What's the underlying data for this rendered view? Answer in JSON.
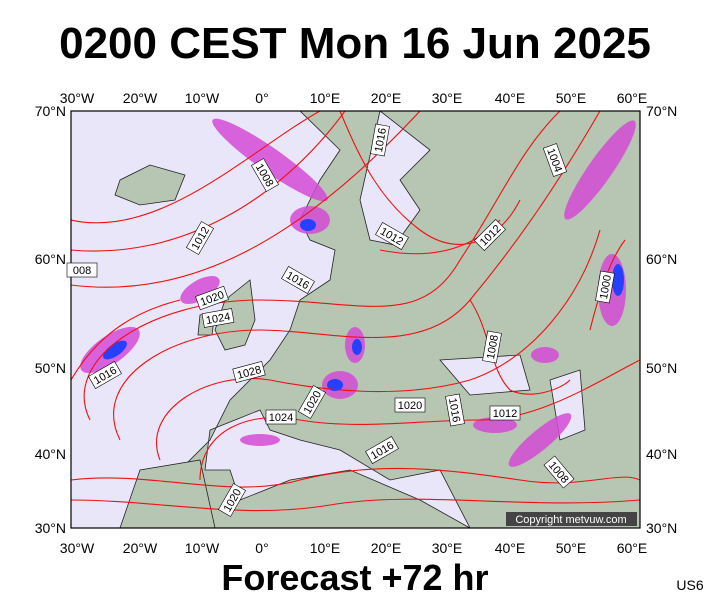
{
  "header": {
    "title": "0200 CEST Mon 16 Jun 2025"
  },
  "map": {
    "lon_labels": [
      "30°W",
      "20°W",
      "10°W",
      "0°",
      "10°E",
      "20°E",
      "30°E",
      "40°E",
      "50°E",
      "60°E"
    ],
    "lat_labels": [
      "70°N",
      "60°N",
      "50°N",
      "40°N",
      "30°N"
    ],
    "isobar_labels": [
      "1016",
      "1008",
      "1004",
      "1012",
      "1012",
      "1012",
      "1016",
      "1020",
      "1024",
      "1000",
      "008",
      "1028",
      "1016",
      "1008",
      "1024",
      "1020",
      "1020",
      "1016",
      "1012",
      "1016",
      "1008",
      "1020"
    ],
    "copyright": "Copyright metvuw.com"
  },
  "footer": {
    "forecast": "Forecast +72 hr",
    "code": "US6"
  }
}
